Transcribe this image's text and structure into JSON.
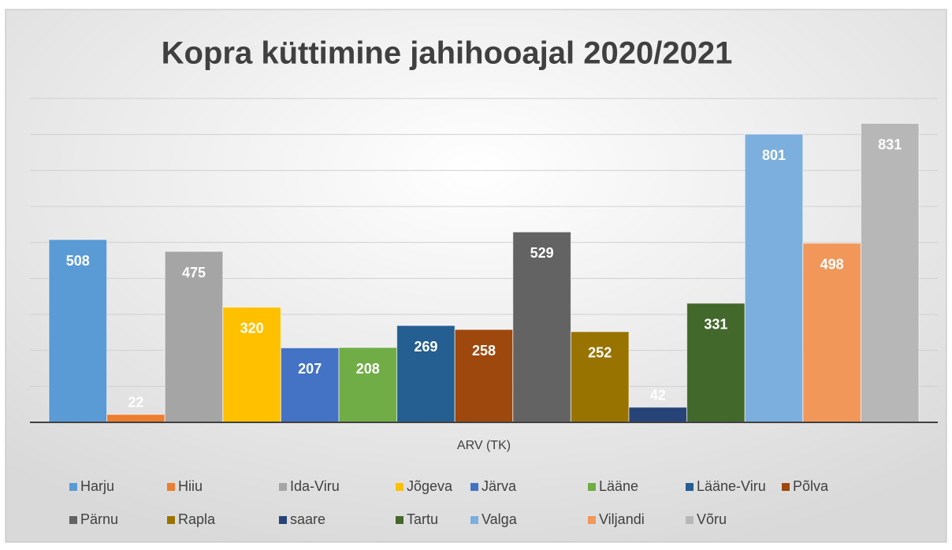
{
  "chart_data": {
    "type": "bar",
    "title": "Kopra küttimine jahihooajal 2020/2021",
    "categories": [
      "ARV (TK)"
    ],
    "series": [
      {
        "name": "Harju",
        "color": "#5b9bd5",
        "values": [
          508
        ]
      },
      {
        "name": "Hiiu",
        "color": "#ed7d31",
        "values": [
          22
        ]
      },
      {
        "name": "Ida-Viru",
        "color": "#a5a5a5",
        "values": [
          475
        ]
      },
      {
        "name": "Jõgeva",
        "color": "#ffc000",
        "values": [
          320
        ]
      },
      {
        "name": "Järva",
        "color": "#4472c4",
        "values": [
          207
        ]
      },
      {
        "name": "Lääne",
        "color": "#70ad47",
        "values": [
          208
        ]
      },
      {
        "name": "Lääne-Viru",
        "color": "#255e91",
        "values": [
          269
        ]
      },
      {
        "name": "Põlva",
        "color": "#9e480e",
        "values": [
          258
        ]
      },
      {
        "name": "Pärnu",
        "color": "#636363",
        "values": [
          529
        ]
      },
      {
        "name": "Rapla",
        "color": "#997300",
        "values": [
          252
        ]
      },
      {
        "name": "saare",
        "color": "#264478",
        "values": [
          42
        ]
      },
      {
        "name": "Tartu",
        "color": "#43682b",
        "values": [
          331
        ]
      },
      {
        "name": "Valga",
        "color": "#7cafdd",
        "values": [
          801
        ]
      },
      {
        "name": "Viljandi",
        "color": "#f1975a",
        "values": [
          498
        ]
      },
      {
        "name": "Võru",
        "color": "#b7b7b7",
        "values": [
          831
        ]
      }
    ],
    "ylim": [
      0,
      900
    ],
    "yticks": [
      0,
      100,
      200,
      300,
      400,
      500,
      600,
      700,
      800,
      900
    ],
    "grid": true
  }
}
